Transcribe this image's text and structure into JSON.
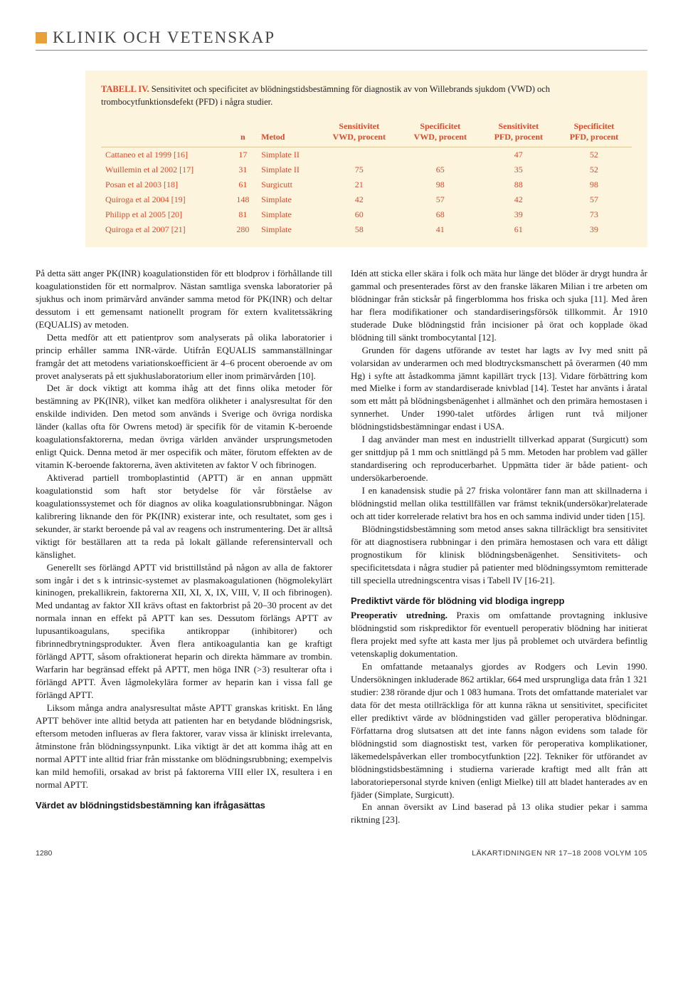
{
  "header": {
    "section_title": "KLINIK OCH VETENSKAP",
    "accent_color": "#e8a038"
  },
  "table": {
    "background_color": "#fdf4de",
    "text_color": "#d94a2a",
    "caption_label": "TABELL IV.",
    "caption_text": "Sensitivitet och specificitet av blödningstidsbestämning för diagnostik av von Willebrands sjukdom (VWD) och trombocytfunktionsdefekt (PFD) i några studier.",
    "columns": [
      {
        "label": "",
        "sub": ""
      },
      {
        "label": "n",
        "sub": ""
      },
      {
        "label": "Metod",
        "sub": ""
      },
      {
        "label": "Sensitivitet",
        "sub": "VWD, procent"
      },
      {
        "label": "Specificitet",
        "sub": "VWD, procent"
      },
      {
        "label": "Sensitivitet",
        "sub": "PFD, procent"
      },
      {
        "label": "Specificitet",
        "sub": "PFD, procent"
      }
    ],
    "rows": [
      {
        "study": "Cattaneo et al 1999 [16]",
        "n": "17",
        "method": "Simplate II",
        "sv": "",
        "spv": "",
        "sp": "47",
        "spp": "52"
      },
      {
        "study": "Wuillemin et al 2002 [17]",
        "n": "31",
        "method": "Simplate II",
        "sv": "75",
        "spv": "65",
        "sp": "35",
        "spp": "52"
      },
      {
        "study": "Posan et al 2003 [18]",
        "n": "61",
        "method": "Surgicutt",
        "sv": "21",
        "spv": "98",
        "sp": "88",
        "spp": "98"
      },
      {
        "study": "Quiroga et al 2004 [19]",
        "n": "148",
        "method": "Simplate",
        "sv": "42",
        "spv": "57",
        "sp": "42",
        "spp": "57"
      },
      {
        "study": "Philipp et al 2005 [20]",
        "n": "81",
        "method": "Simplate",
        "sv": "60",
        "spv": "68",
        "sp": "39",
        "spp": "73"
      },
      {
        "study": "Quiroga et al 2007 [21]",
        "n": "280",
        "method": "Simplate",
        "sv": "58",
        "spv": "41",
        "sp": "61",
        "spp": "39"
      }
    ]
  },
  "body": {
    "p1": "På detta sätt anger PK(INR) koagulationstiden för ett blodprov i förhållande till koagulationstiden för ett normalprov. Nästan samtliga svenska laboratorier på sjukhus och inom primärvård använder samma metod för PK(INR) och deltar dessutom i ett gemensamt nationellt program för extern kvalitetssäkring (EQUALIS) av metoden.",
    "p2": "Detta medför att ett patientprov som analyserats på olika laboratorier i princip erhåller samma INR-värde. Utifrån EQUALIS sammanställningar framgår det att metodens variationskoefficient är 4–6 procent oberoende av om provet analyserats på ett sjukhuslaboratorium eller inom primärvården [10].",
    "p3": "Det är dock viktigt att komma ihåg att det finns olika metoder för bestämning av PK(INR), vilket kan medföra olikheter i analysresultat för den enskilde individen. Den metod som används i Sverige och övriga nordiska länder (kallas ofta för Owrens metod) är specifik för de vitamin K-beroende koagulationsfaktorerna, medan övriga världen använder ursprungsmetoden enligt Quick. Denna metod är mer ospecifik och mäter, förutom effekten av de vitamin K-beroende faktorerna, även aktiviteten av faktor V och fibrinogen.",
    "p4": "Aktiverad partiell tromboplastintid (APTT) är en annan uppmätt koagulationstid som haft stor betydelse för vår förståelse av koagulationssystemet och för diagnos av olika koagulationsrubbningar. Någon kalibrering liknande den för PK(INR) existerar inte, och resultatet, som ges i sekunder, är starkt beroende på val av reagens och instrumentering. Det är alltså viktigt för beställaren att ta reda på lokalt gällande referensintervall och känslighet.",
    "p5": "Generellt ses förlängd APTT vid bristtillstånd på någon av alla de faktorer som ingår i det s k intrinsic-systemet av plasmakoagulationen (högmolekylärt kininogen, prekallikrein, faktorerna XII, XI, X, IX, VIII, V, II och fibrinogen). Med undantag av faktor XII krävs oftast en faktorbrist på 20–30 procent av det normala innan en effekt på APTT kan ses. Dessutom förlängs APTT av lupusantikoagulans, specifika antikroppar (inhibitorer) och fibrinnedbrytningsprodukter. Även flera antikoagulantia kan ge kraftigt förlängd APTT, såsom ofraktionerat heparin och direkta hämmare av trombin. Warfarin har begränsad effekt på APTT, men höga INR (>3) resulterar ofta i förlängd APTT. Även lågmolekylära former av heparin kan i vissa fall ge förlängd APTT.",
    "p6": "Liksom många andra analysresultat måste APTT granskas kritiskt. En lång APTT behöver inte alltid betyda att patienten har en betydande blödningsrisk, eftersom metoden influeras av flera faktorer, varav vissa är kliniskt irrelevanta, åtminstone från blödningssynpunkt. Lika viktigt är det att komma ihåg att en normal APTT inte alltid friar från misstanke om blödningsrubbning; exempelvis kan mild hemofili, orsakad av brist på faktorerna VIII eller IX, resultera i en normal APTT.",
    "h1": "Värdet av blödningstidsbestämning kan ifrågasättas",
    "p7": "Idén att sticka eller skära i folk och mäta hur länge det blöder är drygt hundra år gammal och presenterades först av den franske läkaren Milian i tre arbeten om blödningar från sticksår på fingerblomma hos friska och sjuka [11]. Med åren har flera modifikationer och standardiseringsförsök tillkommit. År 1910 studerade Duke blödningstid från incisioner på örat och kopplade ökad blödning till sänkt trombocytantal [12].",
    "p8": "Grunden för dagens utförande av testet har lagts av Ivy med snitt på volarsidan av underarmen och med blodtrycksmanschett på överarmen (40 mm Hg) i syfte att åstadkomma jämnt kapillärt tryck [13]. Vidare förbättring kom med Mielke i form av standardiserade knivblad [14]. Testet har använts i åratal som ett mått på blödningsbenägenhet i allmänhet och den primära hemostasen i synnerhet. Under 1990-talet utfördes årligen runt två miljoner blödningstidsbestämningar endast i USA.",
    "p9": "I dag använder man mest en industriellt tillverkad apparat (Surgicutt) som ger snittdjup på 1 mm och snittlängd på 5 mm. Metoden har problem vad gäller standardisering och reproducerbarhet. Uppmätta tider är både patient- och undersökarberoende.",
    "p10": "I en kanadensisk studie på 27 friska volontärer fann man att skillnaderna i blödningstid mellan olika testtillfällen var främst teknik(undersökar)relaterade och att tider korrelerade relativt bra hos en och samma individ under tiden [15].",
    "p11": "Blödningstidsbestämning som metod anses sakna tillräckligt bra sensitivitet för att diagnostisera rubbningar i den primära hemostasen och vara ett dåligt prognostikum för klinisk blödningsbenägenhet. Sensitivitets- och specificitetsdata i några studier på patienter med blödningssymtom remitterade till speciella utredningscentra visas i Tabell IV [16-21].",
    "h2": "Prediktivt värde för blödning vid blodiga ingrepp",
    "p12_lead": "Preoperativ utredning.",
    "p12": " Praxis om omfattande provtagning inklusive blödningstid som riskprediktor för eventuell peroperativ blödning har initierat flera projekt med syfte att kasta mer ljus på problemet och utvärdera befintlig vetenskaplig dokumentation.",
    "p13": "En omfattande metaanalys gjordes av Rodgers och Levin 1990. Undersökningen inkluderade 862 artiklar, 664 med ursprungliga data från 1 321 studier: 238 rörande djur och 1 083 humana. Trots det omfattande materialet var data för det mesta otillräckliga för att kunna räkna ut sensitivitet, specificitet eller prediktivt värde av blödningstiden vad gäller peroperativa blödningar. Författarna drog slutsatsen att det inte fanns någon evidens som talade för blödningstid som diagnostiskt test, varken för peroperativa komplikationer, läkemedelspåverkan eller trombocytfunktion [22]. Tekniker för utförandet av blödningstidsbestämning i studierna varierade kraftigt med allt från att laboratoriepersonal styrde kniven (enligt Mielke) till att bladet hanterades av en fjäder (Simplate, Surgicutt).",
    "p14": "En annan översikt av Lind baserad på 13 olika studier pekar i samma riktning [23]."
  },
  "footer": {
    "page": "1280",
    "right": "LÄKARTIDNINGEN NR 17–18 2008 VOLYM 105"
  }
}
